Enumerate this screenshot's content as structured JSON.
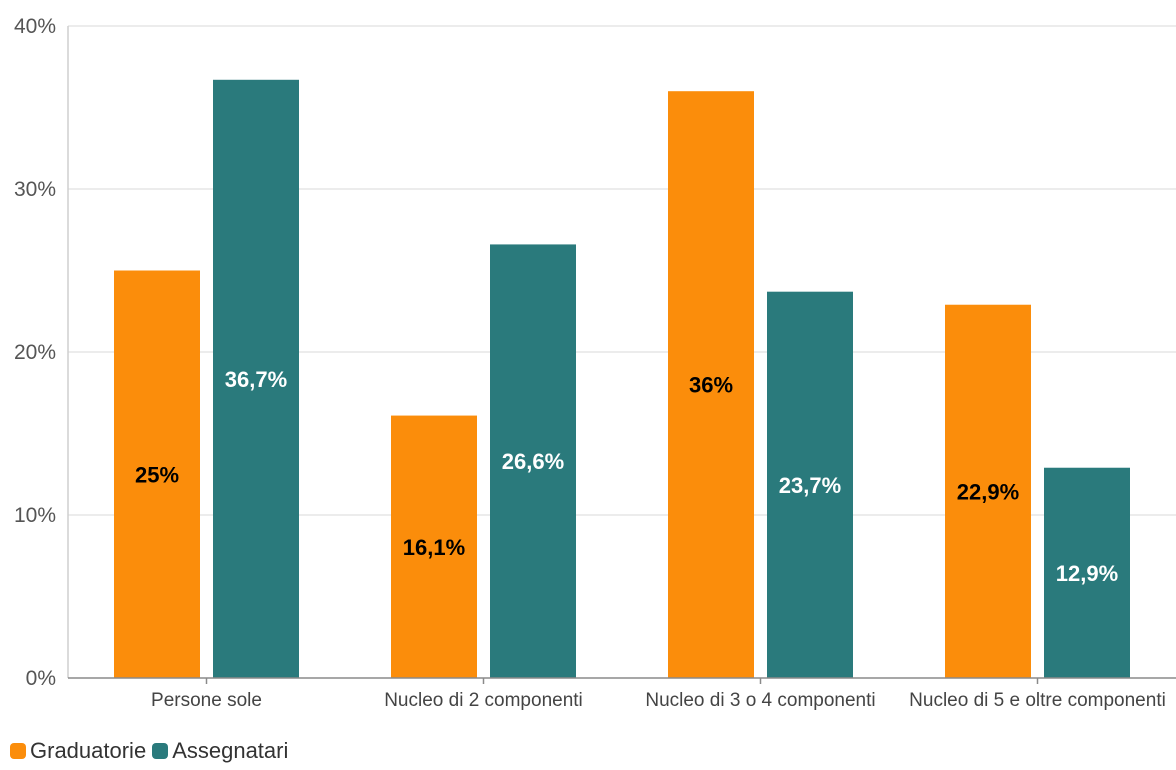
{
  "chart_data": {
    "type": "bar",
    "categories": [
      "Persone sole",
      "Nucleo di 2 componenti",
      "Nucleo di 3 o 4 componenti",
      "Nucleo di 5 e oltre componenti"
    ],
    "series": [
      {
        "name": "Graduatorie",
        "values": [
          25,
          16.1,
          36,
          22.9
        ],
        "labels": [
          "25%",
          "16,1%",
          "36%",
          "22,9%"
        ],
        "color": "#fb8d0b",
        "label_color": "#000000"
      },
      {
        "name": "Assegnatari",
        "values": [
          36.7,
          26.6,
          23.7,
          12.9
        ],
        "labels": [
          "36,7%",
          "26,6%",
          "23,7%",
          "12,9%"
        ],
        "color": "#2a7a7c",
        "label_color": "#ffffff"
      }
    ],
    "ylim": [
      0,
      40
    ],
    "yticks": [
      0,
      10,
      20,
      30,
      40
    ],
    "ytick_labels": [
      "0%",
      "10%",
      "20%",
      "30%",
      "40%"
    ],
    "grid": true,
    "legend_position": "bottom-left",
    "title": "",
    "xlabel": "",
    "ylabel": ""
  }
}
